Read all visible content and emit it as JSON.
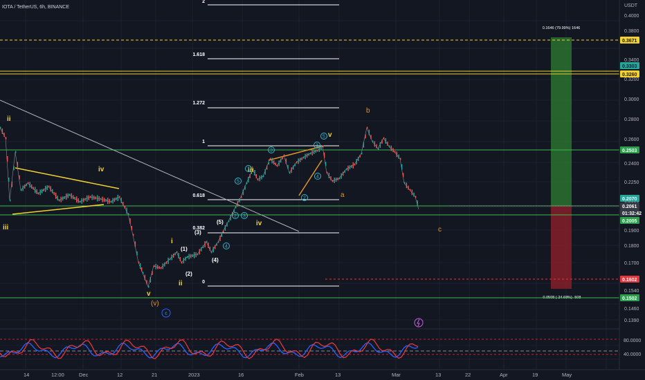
{
  "header": {
    "title": "IOTA / TetherUS, 6h, BINANCE"
  },
  "price_axis": {
    "unit": "USDT",
    "ticks": [
      "0.4000",
      "0.3800",
      "0.3400",
      "0.3200",
      "0.3000",
      "0.2800",
      "0.2600",
      "0.2400",
      "0.2250",
      "0.2100",
      "0.1900",
      "0.1800",
      "0.1700",
      "0.1540",
      "0.1460",
      "0.1390"
    ],
    "badges": [
      {
        "text": "0.3671",
        "bg": "#f2d230",
        "fg": "#131722"
      },
      {
        "text": "0.3303",
        "bg": "#26a69a",
        "fg": "#131722"
      },
      {
        "text": "0.3260",
        "bg": "#f2d230",
        "fg": "#131722"
      },
      {
        "text": "0.2503",
        "bg": "#2e9e4f",
        "fg": "#ffffff"
      },
      {
        "text": "0.2070",
        "bg": "#26a69a",
        "fg": "#ffffff"
      },
      {
        "text": "0.2061",
        "bg": "#363a45",
        "fg": "#ffffff"
      },
      {
        "text": "01:32:42",
        "bg": "#363a45",
        "fg": "#ffffff"
      },
      {
        "text": "0.2005",
        "bg": "#2e9e4f",
        "fg": "#ffffff"
      },
      {
        "text": "0.1602",
        "bg": "#e0383e",
        "fg": "#ffffff"
      },
      {
        "text": "0.1502",
        "bg": "#2e9e4f",
        "fg": "#ffffff"
      }
    ]
  },
  "time_axis": {
    "labels": [
      "14",
      "12:00",
      "Dec",
      "12",
      "21",
      "2023",
      "16",
      "Feb",
      "13",
      "Mar",
      "13",
      "22",
      "Apr",
      "19",
      "May"
    ]
  },
  "indicator": {
    "levels": [
      "80.0000",
      "40.0000"
    ]
  },
  "fib_levels": [
    "2",
    "1.618",
    "1.272",
    "1",
    "0.618",
    "0.382",
    "0"
  ],
  "waves": {
    "white": [
      "i",
      "(1)",
      "(2)",
      "(3)",
      "(4)",
      "(5)"
    ],
    "yellow": [
      "ii",
      "iii",
      "iv",
      "v",
      "ii",
      "iii",
      "iv",
      "v",
      "i",
      "ii"
    ],
    "orange": [
      "(v)",
      "a",
      "b",
      "c"
    ],
    "cyan": [
      "1",
      "2",
      "3",
      "4",
      "5",
      "2",
      "4",
      "3",
      "5",
      "c"
    ]
  },
  "position_tool": {
    "target_text": "0.1646 (79.99%) 1646",
    "stop_text": "-0.0508 (-24.68%) -508"
  },
  "colors": {
    "background": "#131722",
    "green_level": "#3dba4e",
    "yellow_level": "#f2d230",
    "target_zone": "#2e7d32",
    "stop_zone": "#8b1f2a"
  }
}
